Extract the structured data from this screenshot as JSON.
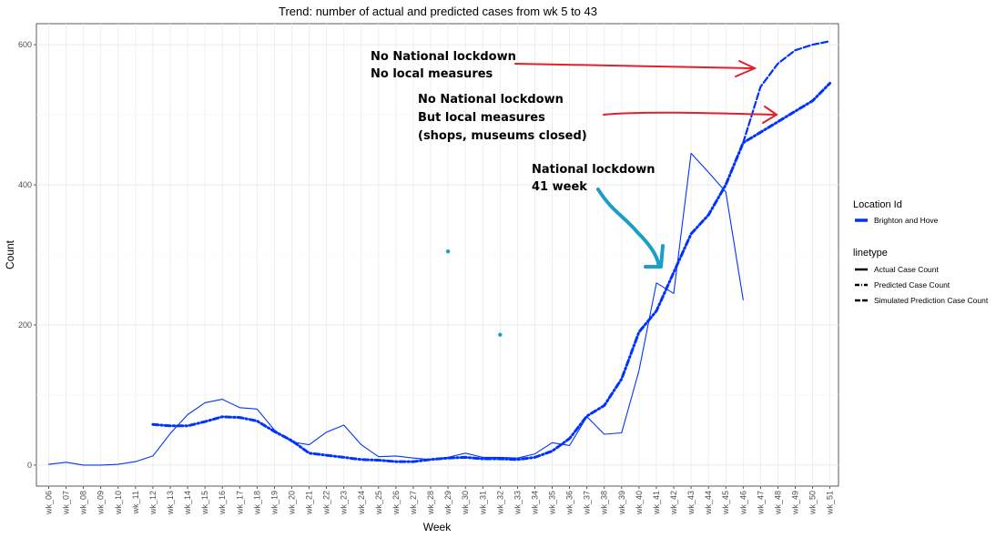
{
  "chart_data": {
    "type": "line",
    "title": "Trend: number of actual and predicted cases from wk 5 to 43",
    "xlabel": "Week",
    "ylabel": "Count",
    "ylim": [
      -30,
      630
    ],
    "yticks": [
      0,
      200,
      400,
      600
    ],
    "grid": true,
    "legend_position": "right",
    "categories": [
      "wk_06",
      "wk_07",
      "wk_08",
      "wk_09",
      "wk_10",
      "wk_11",
      "wk_12",
      "wk_13",
      "wk_14",
      "wk_15",
      "wk_16",
      "wk_17",
      "wk_18",
      "wk_19",
      "wk_20",
      "wk_21",
      "wk_22",
      "wk_23",
      "wk_24",
      "wk_25",
      "wk_26",
      "wk_27",
      "wk_28",
      "wk_29",
      "wk_30",
      "wk_31",
      "wk_32",
      "wk_33",
      "wk_34",
      "wk_35",
      "wk_36",
      "wk_37",
      "wk_38",
      "wk_39",
      "wk_40",
      "wk_41",
      "wk_42",
      "wk_43",
      "wk_44",
      "wk_45",
      "wk_46",
      "wk_47",
      "wk_48",
      "wk_49",
      "wk_50",
      "wk_51"
    ],
    "series": [
      {
        "name": "Actual Case Count",
        "style": "solid",
        "color": "#0033ff",
        "values": [
          1,
          4,
          0,
          0,
          1,
          5,
          13,
          45,
          72,
          89,
          94,
          82,
          80,
          50,
          33,
          29,
          47,
          57,
          29,
          12,
          13,
          10,
          8,
          11,
          17,
          11,
          11,
          10,
          16,
          32,
          28,
          69,
          44,
          46,
          135,
          260,
          245,
          445,
          418,
          390,
          236,
          null,
          null,
          null,
          null,
          null
        ]
      },
      {
        "name": "Predicted Case Count",
        "style": "dotdash",
        "color": "#0033ff",
        "values": [
          null,
          null,
          null,
          null,
          null,
          null,
          58,
          56,
          56,
          62,
          69,
          68,
          63,
          48,
          35,
          17,
          14,
          11,
          8,
          7,
          5,
          5,
          8,
          10,
          11,
          9,
          9,
          8,
          11,
          20,
          38,
          70,
          85,
          123,
          190,
          220,
          275,
          330,
          357,
          400,
          460,
          475,
          490,
          505,
          520,
          545
        ]
      },
      {
        "name": "Simulated Prediction Case Count",
        "style": "dashed",
        "color": "#0033ff",
        "values": [
          null,
          null,
          null,
          null,
          null,
          null,
          null,
          null,
          null,
          null,
          null,
          null,
          null,
          null,
          null,
          null,
          null,
          null,
          null,
          null,
          null,
          null,
          null,
          null,
          null,
          null,
          null,
          null,
          null,
          null,
          null,
          null,
          null,
          null,
          null,
          null,
          null,
          null,
          null,
          null,
          460,
          540,
          573,
          592,
          600,
          605
        ]
      }
    ],
    "points": [
      {
        "x": "wk_29",
        "y": 305,
        "color": "#1a9fc9"
      },
      {
        "x": "wk_32",
        "y": 186,
        "color": "#1a9fc9"
      }
    ],
    "legend": {
      "location_title": "Location Id",
      "location_item": "Brighton and Hove",
      "linetype_title": "linetype",
      "linetype_items": [
        "Actual Case Count",
        "Predicted Case Count",
        "Simulated Prediction Case Count"
      ]
    },
    "annotations": {
      "a1_line1": "No National lockdown",
      "a1_line2": "No local measures",
      "a2_line1": "No National lockdown",
      "a2_line2": "But local measures",
      "a2_line3": "(shops, museums closed)",
      "a3_line1": "National lockdown",
      "a3_line2": "41 week"
    },
    "colors": {
      "series": "#0033ff",
      "red_arrow": "#e3202a",
      "cyan_arrow": "#1a9fc9"
    }
  }
}
